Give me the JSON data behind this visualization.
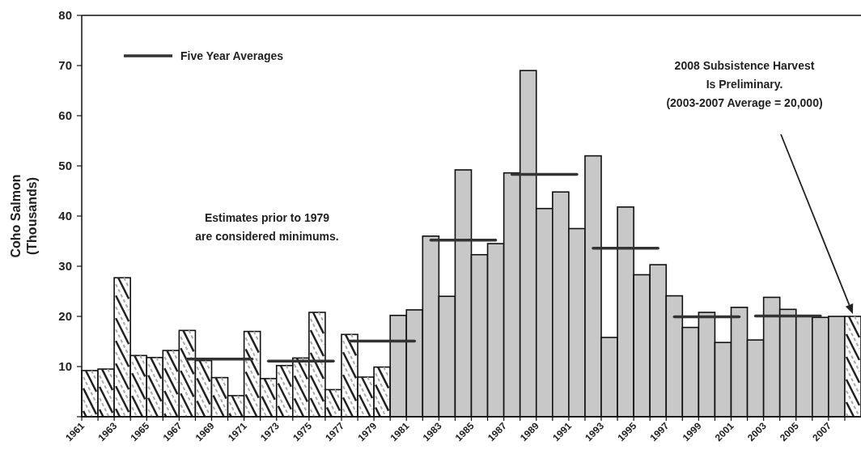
{
  "chart_data": {
    "type": "bar",
    "ylabel": "Coho Salmon\n(Thousands)",
    "x": [
      1961,
      1962,
      1963,
      1964,
      1965,
      1966,
      1967,
      1968,
      1969,
      1970,
      1971,
      1972,
      1973,
      1974,
      1975,
      1976,
      1977,
      1978,
      1979,
      1980,
      1981,
      1982,
      1983,
      1984,
      1985,
      1986,
      1987,
      1988,
      1989,
      1990,
      1991,
      1992,
      1993,
      1994,
      1995,
      1996,
      1997,
      1998,
      1999,
      2000,
      2001,
      2002,
      2003,
      2004,
      2005,
      2006,
      2007,
      2008
    ],
    "xlim": [
      1960.5,
      2008.5
    ],
    "xticks": [
      {
        "value": 1960.5,
        "label": "1961"
      },
      {
        "value": 1961.5,
        "label": null
      },
      {
        "value": 1962.5,
        "label": "1963"
      },
      {
        "value": 1963.5,
        "label": null
      },
      {
        "value": 1964.5,
        "label": "1965"
      },
      {
        "value": 1965.5,
        "label": null
      },
      {
        "value": 1966.5,
        "label": "1967"
      },
      {
        "value": 1967.5,
        "label": null
      },
      {
        "value": 1968.5,
        "label": "1969"
      },
      {
        "value": 1969.5,
        "label": null
      },
      {
        "value": 1970.5,
        "label": "1971"
      },
      {
        "value": 1971.5,
        "label": null
      },
      {
        "value": 1972.5,
        "label": "1973"
      },
      {
        "value": 1973.5,
        "label": null
      },
      {
        "value": 1974.5,
        "label": "1975"
      },
      {
        "value": 1975.5,
        "label": null
      },
      {
        "value": 1976.5,
        "label": "1977"
      },
      {
        "value": 1977.5,
        "label": null
      },
      {
        "value": 1978.5,
        "label": "1979"
      },
      {
        "value": 1979.5,
        "label": null
      },
      {
        "value": 1980.5,
        "label": "1981"
      },
      {
        "value": 1981.5,
        "label": null
      },
      {
        "value": 1982.5,
        "label": "1983"
      },
      {
        "value": 1983.5,
        "label": null
      },
      {
        "value": 1984.5,
        "label": "1985"
      },
      {
        "value": 1985.5,
        "label": null
      },
      {
        "value": 1986.5,
        "label": "1987"
      },
      {
        "value": 1987.5,
        "label": null
      },
      {
        "value": 1988.5,
        "label": "1989"
      },
      {
        "value": 1989.5,
        "label": null
      },
      {
        "value": 1990.5,
        "label": "1991"
      },
      {
        "value": 1991.5,
        "label": null
      },
      {
        "value": 1992.5,
        "label": "1993"
      },
      {
        "value": 1993.5,
        "label": null
      },
      {
        "value": 1994.5,
        "label": "1995"
      },
      {
        "value": 1995.5,
        "label": null
      },
      {
        "value": 1996.5,
        "label": "1997"
      },
      {
        "value": 1997.5,
        "label": null
      },
      {
        "value": 1998.5,
        "label": "1999"
      },
      {
        "value": 1999.5,
        "label": null
      },
      {
        "value": 2000.5,
        "label": "2001"
      },
      {
        "value": 2001.5,
        "label": null
      },
      {
        "value": 2002.5,
        "label": "2003"
      },
      {
        "value": 2003.5,
        "label": null
      },
      {
        "value": 2004.5,
        "label": "2005"
      },
      {
        "value": 2005.5,
        "label": null
      },
      {
        "value": 2006.5,
        "label": "2007"
      },
      {
        "value": 2007.5,
        "label": null
      }
    ],
    "ylim": [
      0,
      80
    ],
    "yticks": [
      {
        "value": 0,
        "label": null
      },
      10,
      20,
      30,
      40,
      50,
      60,
      70,
      80
    ],
    "grid": false,
    "legend": "top left",
    "series": [
      {
        "values": [
          9.2,
          9.5,
          27.7,
          12.2,
          11.8,
          13.2,
          17.2,
          11.2,
          7.8,
          4.2,
          17.0,
          7.6,
          10.2,
          11.7,
          20.8,
          5.4,
          16.4,
          7.9,
          9.9,
          20.2,
          21.3,
          36.0,
          24.0,
          49.2,
          32.3,
          34.5,
          48.6,
          69.0,
          41.5,
          44.8,
          37.5,
          52.0,
          15.8,
          41.8,
          28.3,
          30.3,
          24.1,
          17.8,
          20.8,
          14.8,
          21.8,
          15.3,
          23.8,
          21.4,
          20.0,
          19.8,
          20.0,
          20.0
        ],
        "colors": [
          "#ffffff",
          "#ffffff",
          "#ffffff",
          "#ffffff",
          "#ffffff",
          "#ffffff",
          "#ffffff",
          "#ffffff",
          "#ffffff",
          "#ffffff",
          "#ffffff",
          "#ffffff",
          "#ffffff",
          "#ffffff",
          "#ffffff",
          "#ffffff",
          "#ffffff",
          "#ffffff",
          "#ffffff",
          "#c8c8c8",
          "#c8c8c8",
          "#c8c8c8",
          "#c8c8c8",
          "#c8c8c8",
          "#c8c8c8",
          "#c8c8c8",
          "#c8c8c8",
          "#c8c8c8",
          "#c8c8c8",
          "#c8c8c8",
          "#c8c8c8",
          "#c8c8c8",
          "#c8c8c8",
          "#c8c8c8",
          "#c8c8c8",
          "#c8c8c8",
          "#c8c8c8",
          "#c8c8c8",
          "#c8c8c8",
          "#c8c8c8",
          "#c8c8c8",
          "#c8c8c8",
          "#c8c8c8",
          "#c8c8c8",
          "#c8c8c8",
          "#c8c8c8",
          "#c8c8c8",
          "#ffffff"
        ]
      },
      {
        "type": "line",
        "name": "Five Year Averages",
        "color": "#333333",
        "x": [
          1967,
          1971
        ],
        "values": [
          11.5,
          11.5
        ]
      },
      {
        "type": "line",
        "color": "#333333",
        "x": [
          1972,
          1976
        ],
        "values": [
          11.1,
          11.1
        ]
      },
      {
        "type": "line",
        "color": "#333333",
        "x": [
          1977,
          1981
        ],
        "values": [
          15.1,
          15.1
        ]
      },
      {
        "type": "line",
        "color": "#333333",
        "x": [
          1982,
          1986
        ],
        "values": [
          35.2,
          35.2
        ]
      },
      {
        "type": "line",
        "color": "#333333",
        "x": [
          1987,
          1991
        ],
        "values": [
          48.3,
          48.3
        ]
      },
      {
        "type": "line",
        "color": "#333333",
        "x": [
          1992,
          1996
        ],
        "values": [
          33.6,
          33.6
        ]
      },
      {
        "type": "line",
        "color": "#333333",
        "x": [
          1997,
          2001
        ],
        "values": [
          19.9,
          19.9
        ]
      },
      {
        "type": "line",
        "color": "#333333",
        "x": [
          2002,
          2006
        ],
        "values": [
          20.1,
          20.1
        ]
      }
    ],
    "annotations": [
      "Estimates prior to 1979\nare considered minimums.",
      "2008 Subsistence Harvest\nIs Preliminary.\n(2003-2007 Average = 20,000)"
    ]
  }
}
